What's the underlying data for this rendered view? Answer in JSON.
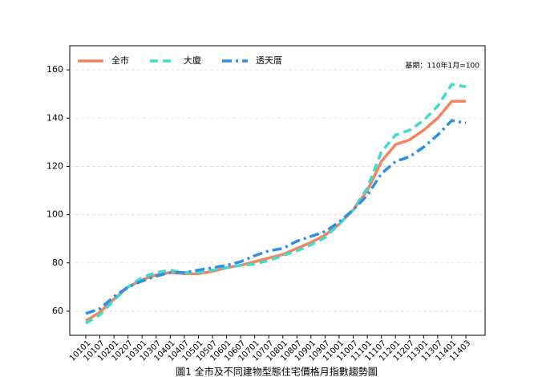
{
  "chart_data": {
    "type": "line",
    "title": "圖1 全市及不同建物型態住宅價格月指數趨勢圖",
    "annotation": "基期：110年1月=100",
    "categories": [
      "10101",
      "10107",
      "10201",
      "10207",
      "10301",
      "10307",
      "10401",
      "10407",
      "10501",
      "10507",
      "10601",
      "10607",
      "10701",
      "10707",
      "10801",
      "10807",
      "10901",
      "10907",
      "11001",
      "11007",
      "11101",
      "11107",
      "11201",
      "11207",
      "11301",
      "11307",
      "11401",
      "11403"
    ],
    "series": [
      {
        "name": "全市",
        "color": "#f4845f",
        "dash": "solid",
        "values": [
          56,
          59.5,
          65,
          70,
          73,
          75,
          76,
          75.5,
          75.5,
          76.5,
          78,
          79,
          80.5,
          82,
          83.5,
          86,
          88.5,
          91.5,
          96,
          102,
          110,
          122,
          129,
          131,
          135,
          140,
          147,
          147
        ]
      },
      {
        "name": "大廈",
        "color": "#40dcc8",
        "dash": "dashed",
        "values": [
          55,
          58.5,
          64.5,
          70,
          74,
          76,
          77,
          76,
          76,
          77,
          78,
          79,
          79.5,
          81,
          83,
          85,
          87.5,
          90.5,
          96,
          102,
          111,
          126,
          133,
          135,
          139,
          145,
          154,
          153
        ]
      },
      {
        "name": "透天厝",
        "color": "#2e8fe8",
        "dash": "dashdot",
        "values": [
          59,
          61,
          66,
          70,
          72.5,
          74.5,
          76,
          76,
          77,
          78,
          79,
          80.5,
          83,
          85,
          86,
          89,
          91,
          93,
          97,
          102,
          108,
          117,
          122,
          124,
          128,
          133,
          139,
          138
        ]
      }
    ],
    "ylim": [
      50,
      170
    ],
    "yticks": [
      60,
      80,
      100,
      120,
      140,
      160
    ],
    "grid": true,
    "legend": "top-left"
  }
}
